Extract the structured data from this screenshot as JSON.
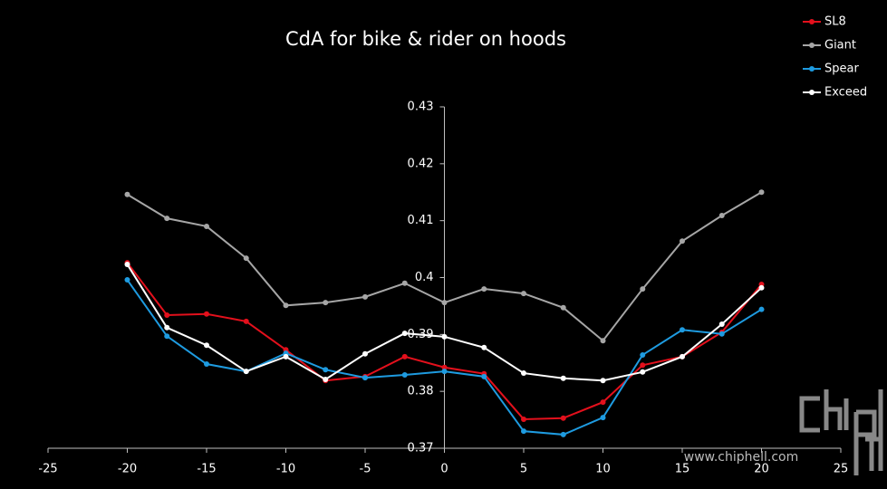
{
  "chart_data": {
    "type": "line",
    "title": "CdA for bike & rider on hoods",
    "x": [
      -20,
      -17.5,
      -15,
      -12.5,
      -10,
      -7.5,
      -5,
      -2.5,
      0,
      2.5,
      5,
      7.5,
      10,
      12.5,
      15,
      17.5,
      20
    ],
    "series": [
      {
        "name": "SL8",
        "color": "#e3101c",
        "values": [
          0.4026,
          0.3934,
          0.3936,
          0.3923,
          0.3873,
          0.3819,
          0.3826,
          0.3861,
          0.3842,
          0.3831,
          0.3751,
          0.3753,
          0.3781,
          0.3846,
          0.3861,
          0.3904,
          0.3988
        ]
      },
      {
        "name": "Giant",
        "color": "#a6a6a6",
        "values": [
          0.4146,
          0.4104,
          0.409,
          0.4034,
          0.3951,
          0.3956,
          0.3966,
          0.399,
          0.3956,
          0.398,
          0.3972,
          0.3947,
          0.3889,
          0.398,
          0.4064,
          0.4109,
          0.415
        ]
      },
      {
        "name": "Spear",
        "color": "#1e9be0",
        "values": [
          0.3996,
          0.3897,
          0.3848,
          0.3835,
          0.3867,
          0.3838,
          0.3824,
          0.3829,
          0.3835,
          0.3826,
          0.373,
          0.3724,
          0.3754,
          0.3864,
          0.3908,
          0.3901,
          0.3944
        ]
      },
      {
        "name": "Exceed",
        "color": "#ffffff",
        "values": [
          0.4023,
          0.3912,
          0.3881,
          0.3835,
          0.3861,
          0.3821,
          0.3866,
          0.3902,
          0.3896,
          0.3877,
          0.3832,
          0.3823,
          0.3819,
          0.3834,
          0.3861,
          0.3918,
          0.3982
        ]
      }
    ],
    "xlim": [
      -25,
      25
    ],
    "xticks": [
      -25,
      -20,
      -15,
      -10,
      -5,
      0,
      5,
      10,
      15,
      20,
      25
    ],
    "ylim": [
      0.37,
      0.43
    ],
    "yticks": [
      0.37,
      0.38,
      0.39,
      0.4,
      0.41,
      0.42,
      0.43
    ],
    "legend": "top-right",
    "watermark": "www.chiphell.com"
  }
}
